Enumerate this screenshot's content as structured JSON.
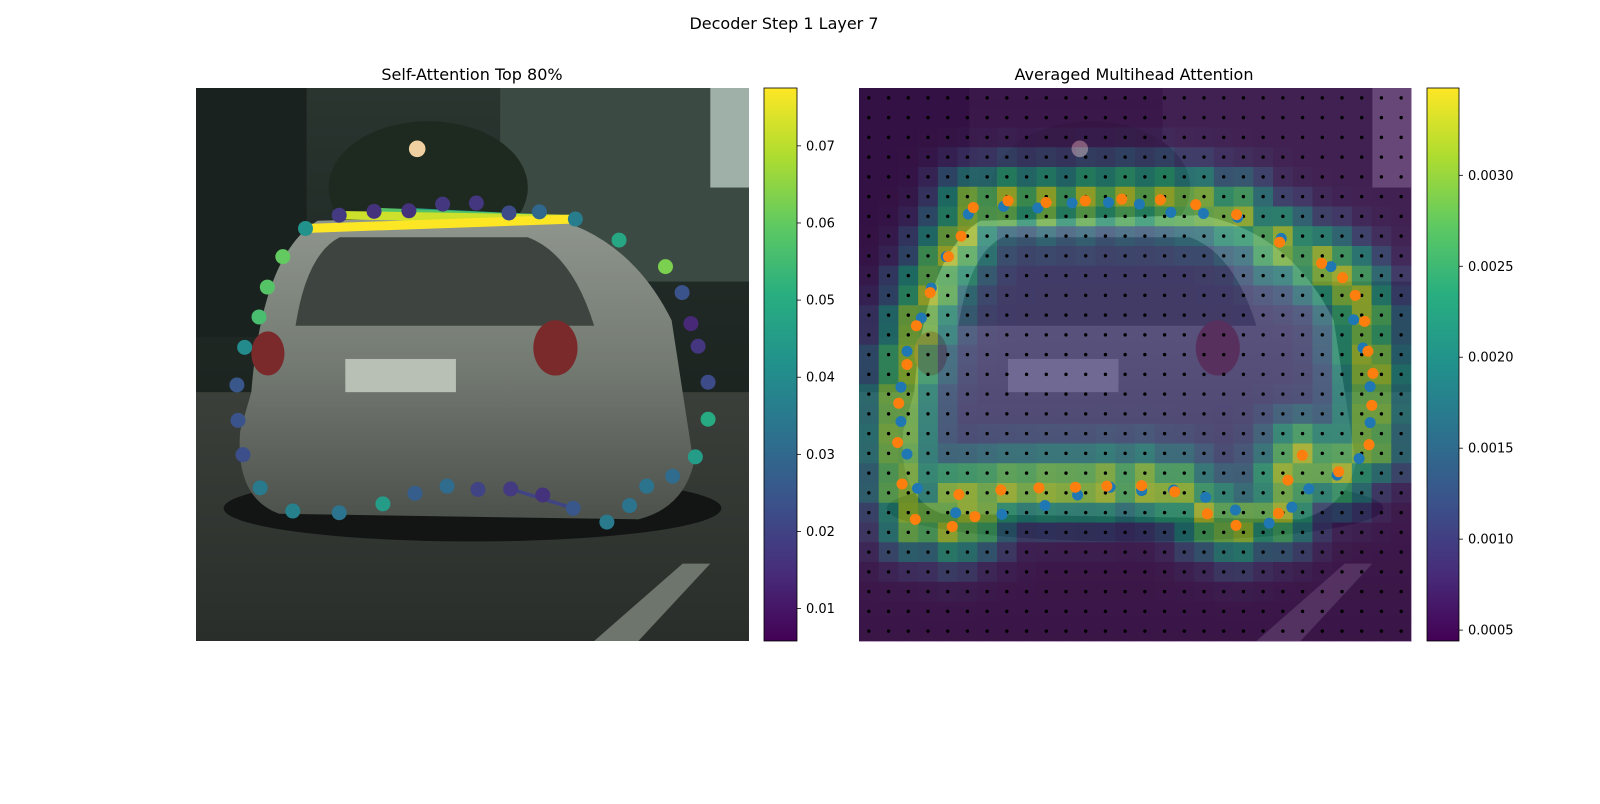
{
  "figure": {
    "suptitle": "Decoder Step 1 Layer 7"
  },
  "chart_data": [
    {
      "type": "scatter",
      "title": "Self-Attention Top 80%",
      "background": "photo of the rear of a silver hatchback car on a city street",
      "colormap": "viridis",
      "colorbar": {
        "range": [
          0.0058,
          0.0775
        ],
        "ticks": [
          0.01,
          0.02,
          0.03,
          0.04,
          0.05,
          0.06,
          0.07
        ],
        "tick_labels": [
          "0.01",
          "0.02",
          "0.03",
          "0.04",
          "0.05",
          "0.06",
          "0.07"
        ]
      },
      "axis_range": {
        "x": [
          0,
          1
        ],
        "y": [
          0,
          1
        ]
      },
      "points": [
        {
          "x": 0.198,
          "y": 0.254,
          "value": 0.042
        },
        {
          "x": 0.259,
          "y": 0.23,
          "value": 0.018
        },
        {
          "x": 0.322,
          "y": 0.223,
          "value": 0.016
        },
        {
          "x": 0.385,
          "y": 0.222,
          "value": 0.016
        },
        {
          "x": 0.446,
          "y": 0.21,
          "value": 0.017
        },
        {
          "x": 0.507,
          "y": 0.208,
          "value": 0.017
        },
        {
          "x": 0.566,
          "y": 0.226,
          "value": 0.022
        },
        {
          "x": 0.621,
          "y": 0.224,
          "value": 0.03
        },
        {
          "x": 0.686,
          "y": 0.237,
          "value": 0.036
        },
        {
          "x": 0.765,
          "y": 0.275,
          "value": 0.048
        },
        {
          "x": 0.849,
          "y": 0.323,
          "value": 0.063
        },
        {
          "x": 0.879,
          "y": 0.37,
          "value": 0.024
        },
        {
          "x": 0.895,
          "y": 0.426,
          "value": 0.014
        },
        {
          "x": 0.908,
          "y": 0.467,
          "value": 0.017
        },
        {
          "x": 0.926,
          "y": 0.532,
          "value": 0.022
        },
        {
          "x": 0.926,
          "y": 0.599,
          "value": 0.049
        },
        {
          "x": 0.903,
          "y": 0.667,
          "value": 0.045
        },
        {
          "x": 0.862,
          "y": 0.702,
          "value": 0.031
        },
        {
          "x": 0.815,
          "y": 0.72,
          "value": 0.033
        },
        {
          "x": 0.784,
          "y": 0.755,
          "value": 0.033
        },
        {
          "x": 0.743,
          "y": 0.785,
          "value": 0.035
        },
        {
          "x": 0.682,
          "y": 0.76,
          "value": 0.025
        },
        {
          "x": 0.627,
          "y": 0.736,
          "value": 0.016
        },
        {
          "x": 0.569,
          "y": 0.725,
          "value": 0.018
        },
        {
          "x": 0.51,
          "y": 0.726,
          "value": 0.02
        },
        {
          "x": 0.454,
          "y": 0.72,
          "value": 0.031
        },
        {
          "x": 0.396,
          "y": 0.733,
          "value": 0.027
        },
        {
          "x": 0.338,
          "y": 0.752,
          "value": 0.045
        },
        {
          "x": 0.259,
          "y": 0.768,
          "value": 0.033
        },
        {
          "x": 0.175,
          "y": 0.765,
          "value": 0.037
        },
        {
          "x": 0.116,
          "y": 0.723,
          "value": 0.035
        },
        {
          "x": 0.085,
          "y": 0.663,
          "value": 0.023
        },
        {
          "x": 0.076,
          "y": 0.601,
          "value": 0.024
        },
        {
          "x": 0.074,
          "y": 0.537,
          "value": 0.025
        },
        {
          "x": 0.088,
          "y": 0.469,
          "value": 0.04
        },
        {
          "x": 0.114,
          "y": 0.414,
          "value": 0.056
        },
        {
          "x": 0.129,
          "y": 0.36,
          "value": 0.058
        },
        {
          "x": 0.157,
          "y": 0.305,
          "value": 0.06
        }
      ],
      "links": [
        {
          "from": 0,
          "to": 8,
          "value": 0.0775
        },
        {
          "from": 1,
          "to": 8,
          "value": 0.072
        },
        {
          "from": 2,
          "to": 8,
          "value": 0.058
        },
        {
          "from": 3,
          "to": 8,
          "value": 0.045
        },
        {
          "from": 23,
          "to": 21,
          "value": 0.02
        }
      ]
    },
    {
      "type": "heatmap",
      "title": "Averaged Multihead Attention",
      "background": "same car photo under a semi-transparent attention heatmap with a grid of reference dots",
      "colormap": "viridis",
      "grid_size": [
        28,
        28
      ],
      "colorbar": {
        "range": [
          0.00044,
          0.00348
        ],
        "ticks": [
          0.0005,
          0.001,
          0.0015,
          0.002,
          0.0025,
          0.003
        ],
        "tick_labels": [
          "0.0005",
          "0.0010",
          "0.0015",
          "0.0020",
          "0.0025",
          "0.0030"
        ]
      },
      "axis_range": {
        "x": [
          0,
          1
        ],
        "y": [
          0,
          1
        ]
      },
      "ring_peak_value": 0.0033,
      "interior_value": 0.0009,
      "outside_value": 0.0005,
      "series": [
        {
          "color": "#1f77b4",
          "points": [
            {
              "x": 0.198,
              "y": 0.228
            },
            {
              "x": 0.262,
              "y": 0.214
            },
            {
              "x": 0.324,
              "y": 0.217
            },
            {
              "x": 0.386,
              "y": 0.208
            },
            {
              "x": 0.452,
              "y": 0.207
            },
            {
              "x": 0.508,
              "y": 0.21
            },
            {
              "x": 0.565,
              "y": 0.225
            },
            {
              "x": 0.624,
              "y": 0.227
            },
            {
              "x": 0.686,
              "y": 0.234
            },
            {
              "x": 0.765,
              "y": 0.272
            },
            {
              "x": 0.855,
              "y": 0.323
            },
            {
              "x": 0.896,
              "y": 0.419
            },
            {
              "x": 0.913,
              "y": 0.47
            },
            {
              "x": 0.926,
              "y": 0.54
            },
            {
              "x": 0.926,
              "y": 0.605
            },
            {
              "x": 0.906,
              "y": 0.67
            },
            {
              "x": 0.866,
              "y": 0.7
            },
            {
              "x": 0.815,
              "y": 0.725
            },
            {
              "x": 0.784,
              "y": 0.758
            },
            {
              "x": 0.743,
              "y": 0.787
            },
            {
              "x": 0.682,
              "y": 0.763
            },
            {
              "x": 0.628,
              "y": 0.74
            },
            {
              "x": 0.57,
              "y": 0.727
            },
            {
              "x": 0.512,
              "y": 0.728
            },
            {
              "x": 0.455,
              "y": 0.722
            },
            {
              "x": 0.396,
              "y": 0.736
            },
            {
              "x": 0.337,
              "y": 0.755
            },
            {
              "x": 0.259,
              "y": 0.771
            },
            {
              "x": 0.175,
              "y": 0.768
            },
            {
              "x": 0.106,
              "y": 0.724
            },
            {
              "x": 0.087,
              "y": 0.662
            },
            {
              "x": 0.076,
              "y": 0.603
            },
            {
              "x": 0.076,
              "y": 0.541
            },
            {
              "x": 0.087,
              "y": 0.476
            },
            {
              "x": 0.113,
              "y": 0.416
            },
            {
              "x": 0.131,
              "y": 0.362
            },
            {
              "x": 0.158,
              "y": 0.305
            }
          ]
        },
        {
          "color": "#ff7f0e",
          "points": [
            {
              "x": 0.207,
              "y": 0.216
            },
            {
              "x": 0.27,
              "y": 0.204
            },
            {
              "x": 0.339,
              "y": 0.207
            },
            {
              "x": 0.41,
              "y": 0.204
            },
            {
              "x": 0.476,
              "y": 0.201
            },
            {
              "x": 0.546,
              "y": 0.202
            },
            {
              "x": 0.61,
              "y": 0.211
            },
            {
              "x": 0.684,
              "y": 0.229
            },
            {
              "x": 0.762,
              "y": 0.279
            },
            {
              "x": 0.838,
              "y": 0.317
            },
            {
              "x": 0.876,
              "y": 0.343
            },
            {
              "x": 0.899,
              "y": 0.375
            },
            {
              "x": 0.916,
              "y": 0.422
            },
            {
              "x": 0.922,
              "y": 0.476
            },
            {
              "x": 0.931,
              "y": 0.516
            },
            {
              "x": 0.929,
              "y": 0.574
            },
            {
              "x": 0.924,
              "y": 0.645
            },
            {
              "x": 0.869,
              "y": 0.694
            },
            {
              "x": 0.777,
              "y": 0.709
            },
            {
              "x": 0.803,
              "y": 0.664
            },
            {
              "x": 0.76,
              "y": 0.769
            },
            {
              "x": 0.683,
              "y": 0.791
            },
            {
              "x": 0.631,
              "y": 0.77
            },
            {
              "x": 0.572,
              "y": 0.73
            },
            {
              "x": 0.512,
              "y": 0.719
            },
            {
              "x": 0.449,
              "y": 0.72
            },
            {
              "x": 0.392,
              "y": 0.722
            },
            {
              "x": 0.326,
              "y": 0.723
            },
            {
              "x": 0.257,
              "y": 0.727
            },
            {
              "x": 0.181,
              "y": 0.735
            },
            {
              "x": 0.21,
              "y": 0.775
            },
            {
              "x": 0.169,
              "y": 0.793
            },
            {
              "x": 0.102,
              "y": 0.78
            },
            {
              "x": 0.078,
              "y": 0.716
            },
            {
              "x": 0.07,
              "y": 0.641
            },
            {
              "x": 0.072,
              "y": 0.57
            },
            {
              "x": 0.087,
              "y": 0.5
            },
            {
              "x": 0.104,
              "y": 0.43
            },
            {
              "x": 0.129,
              "y": 0.37
            },
            {
              "x": 0.162,
              "y": 0.305
            },
            {
              "x": 0.185,
              "y": 0.268
            }
          ]
        }
      ]
    }
  ]
}
